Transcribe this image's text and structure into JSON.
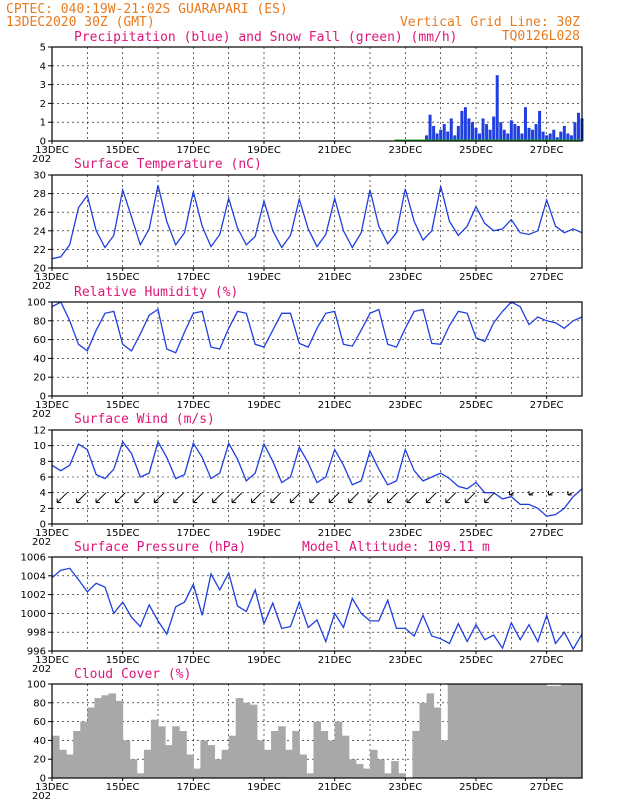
{
  "header": {
    "line1": "CPTEC:  040:19W-21:02S  GUARAPARI (ES)",
    "line2": "13DEC2020 30Z (GMT)",
    "grid_note": "Vertical Grid Line: 30Z",
    "code": "TQ0126L028"
  },
  "x_axis": {
    "start_label": "13DEC",
    "day_labels": [
      "13DEC",
      "15DEC",
      "17DEC",
      "19DEC",
      "21DEC",
      "23DEC",
      "25DEC",
      "27DEC"
    ],
    "year_stub": "202",
    "days_span": 15
  },
  "colors": {
    "line": "#1f3fe0",
    "snow": "#19b020",
    "cloud": "#a8a8a8",
    "title": "#e0157a",
    "header": "#e87b1e"
  },
  "chart_data": [
    {
      "type": "bar",
      "title": "Precipitation (blue) and Snow Fall (green) (mm/h)",
      "ylim": [
        0,
        5
      ],
      "yticks": [
        0,
        1,
        2,
        3,
        4,
        5
      ],
      "series": [
        {
          "name": "Precipitation",
          "color": "#1f3fe0",
          "x": [
            10.6,
            10.7,
            10.8,
            10.9,
            11.0,
            11.1,
            11.2,
            11.3,
            11.4,
            11.5,
            11.6,
            11.7,
            11.8,
            11.9,
            12.0,
            12.1,
            12.2,
            12.3,
            12.4,
            12.5,
            12.6,
            12.7,
            12.8,
            12.9,
            13.0,
            13.1,
            13.2,
            13.3,
            13.4,
            13.5,
            13.6,
            13.7,
            13.8,
            13.9,
            14.0,
            14.1,
            14.2,
            14.3,
            14.4,
            14.5,
            14.6,
            14.7,
            14.8,
            14.9,
            15.0
          ],
          "values": [
            0.3,
            1.4,
            0.8,
            0.4,
            0.6,
            0.9,
            0.5,
            1.2,
            0.3,
            0.8,
            1.6,
            1.8,
            1.2,
            1.0,
            0.7,
            0.4,
            1.2,
            0.9,
            0.6,
            1.3,
            3.5,
            1.0,
            0.6,
            0.4,
            1.1,
            0.9,
            0.8,
            0.4,
            1.8,
            0.7,
            0.6,
            0.9,
            1.6,
            0.5,
            0.3,
            0.4,
            0.6,
            0.2,
            0.5,
            0.8,
            0.4,
            0.3,
            1.0,
            1.5,
            1.2
          ]
        },
        {
          "name": "Snow Fall",
          "color": "#19b020",
          "x": [],
          "values": []
        }
      ]
    },
    {
      "type": "line",
      "title": "Surface Temperature (nC)",
      "ylim": [
        20,
        30
      ],
      "yticks": [
        20,
        22,
        24,
        26,
        28,
        30
      ],
      "x": [
        0.0,
        0.25,
        0.5,
        0.75,
        1.0,
        1.25,
        1.5,
        1.75,
        2.0,
        2.25,
        2.5,
        2.75,
        3.0,
        3.25,
        3.5,
        3.75,
        4.0,
        4.25,
        4.5,
        4.75,
        5.0,
        5.25,
        5.5,
        5.75,
        6.0,
        6.25,
        6.5,
        6.75,
        7.0,
        7.25,
        7.5,
        7.75,
        8.0,
        8.25,
        8.5,
        8.75,
        9.0,
        9.25,
        9.5,
        9.75,
        10.0,
        10.25,
        10.5,
        10.75,
        11.0,
        11.25,
        11.5,
        11.75,
        12.0,
        12.25,
        12.5,
        12.75,
        13.0,
        13.25,
        13.5,
        13.75,
        14.0,
        14.25,
        14.5,
        14.75,
        15.0
      ],
      "values": [
        21.0,
        21.2,
        22.5,
        26.5,
        27.8,
        24.0,
        22.2,
        23.5,
        28.4,
        25.5,
        22.5,
        24.2,
        28.9,
        25.0,
        22.5,
        23.8,
        28.2,
        24.5,
        22.3,
        23.6,
        27.5,
        24.3,
        22.5,
        23.4,
        27.2,
        24.0,
        22.2,
        23.5,
        27.4,
        24.2,
        22.3,
        23.6,
        27.5,
        24.0,
        22.2,
        23.8,
        28.4,
        24.5,
        22.6,
        23.8,
        28.5,
        25.0,
        23.0,
        24.0,
        28.8,
        25.0,
        23.5,
        24.5,
        26.6,
        24.8,
        24.0,
        24.2,
        25.2,
        23.8,
        23.6,
        24.0,
        27.3,
        24.5,
        23.8,
        24.2,
        23.8
      ]
    },
    {
      "type": "line",
      "title": "Relative Humidity (%)",
      "ylim": [
        0,
        100
      ],
      "yticks": [
        0,
        20,
        40,
        60,
        80,
        100
      ],
      "x": [
        0.0,
        0.25,
        0.5,
        0.75,
        1.0,
        1.25,
        1.5,
        1.75,
        2.0,
        2.25,
        2.5,
        2.75,
        3.0,
        3.25,
        3.5,
        3.75,
        4.0,
        4.25,
        4.5,
        4.75,
        5.0,
        5.25,
        5.5,
        5.75,
        6.0,
        6.25,
        6.5,
        6.75,
        7.0,
        7.25,
        7.5,
        7.75,
        8.0,
        8.25,
        8.5,
        8.75,
        9.0,
        9.25,
        9.5,
        9.75,
        10.0,
        10.25,
        10.5,
        10.75,
        11.0,
        11.25,
        11.5,
        11.75,
        12.0,
        12.25,
        12.5,
        12.75,
        13.0,
        13.25,
        13.5,
        13.75,
        14.0,
        14.25,
        14.5,
        14.75,
        15.0
      ],
      "values": [
        95,
        100,
        80,
        55,
        48,
        70,
        88,
        90,
        55,
        48,
        66,
        86,
        92,
        50,
        46,
        68,
        88,
        90,
        52,
        50,
        72,
        90,
        88,
        55,
        52,
        70,
        88,
        88,
        56,
        52,
        72,
        88,
        90,
        55,
        53,
        70,
        88,
        92,
        55,
        52,
        72,
        90,
        92,
        56,
        55,
        75,
        90,
        88,
        62,
        58,
        78,
        90,
        100,
        95,
        76,
        84,
        80,
        78,
        72,
        80,
        84
      ]
    },
    {
      "type": "line",
      "title": "Surface Wind (m/s)",
      "ylim": [
        0,
        12
      ],
      "yticks": [
        0,
        2,
        4,
        6,
        8,
        10,
        12
      ],
      "x": [
        0.0,
        0.25,
        0.5,
        0.75,
        1.0,
        1.25,
        1.5,
        1.75,
        2.0,
        2.25,
        2.5,
        2.75,
        3.0,
        3.25,
        3.5,
        3.75,
        4.0,
        4.25,
        4.5,
        4.75,
        5.0,
        5.25,
        5.5,
        5.75,
        6.0,
        6.25,
        6.5,
        6.75,
        7.0,
        7.25,
        7.5,
        7.75,
        8.0,
        8.25,
        8.5,
        8.75,
        9.0,
        9.25,
        9.5,
        9.75,
        10.0,
        10.25,
        10.5,
        10.75,
        11.0,
        11.25,
        11.5,
        11.75,
        12.0,
        12.25,
        12.5,
        12.75,
        13.0,
        13.25,
        13.5,
        13.75,
        14.0,
        14.25,
        14.5,
        14.75,
        15.0
      ],
      "values": [
        7.5,
        6.8,
        7.5,
        10.2,
        9.5,
        6.3,
        5.8,
        7.0,
        10.5,
        9.0,
        6.0,
        6.5,
        10.5,
        8.5,
        5.8,
        6.3,
        10.3,
        8.5,
        5.8,
        6.5,
        10.3,
        8.3,
        5.5,
        6.5,
        10.2,
        8.0,
        5.3,
        6.0,
        9.8,
        7.8,
        5.3,
        6.0,
        9.5,
        7.5,
        5.0,
        5.5,
        9.3,
        7.0,
        5.0,
        5.5,
        9.5,
        6.8,
        5.5,
        6.0,
        6.5,
        5.8,
        4.8,
        4.5,
        5.3,
        4.0,
        4.0,
        3.2,
        3.5,
        2.5,
        2.5,
        2.0,
        1.0,
        1.2,
        2.0,
        3.5,
        4.5
      ]
    },
    {
      "type": "line",
      "title": "Surface Pressure (hPa)",
      "annotation": "Model Altitude: 109.11 m",
      "ylim": [
        996,
        1006
      ],
      "yticks": [
        996,
        998,
        1000,
        1002,
        1004,
        1006
      ],
      "x": [
        0.0,
        0.25,
        0.5,
        0.75,
        1.0,
        1.25,
        1.5,
        1.75,
        2.0,
        2.25,
        2.5,
        2.75,
        3.0,
        3.25,
        3.5,
        3.75,
        4.0,
        4.25,
        4.5,
        4.75,
        5.0,
        5.25,
        5.5,
        5.75,
        6.0,
        6.25,
        6.5,
        6.75,
        7.0,
        7.25,
        7.5,
        7.75,
        8.0,
        8.25,
        8.5,
        8.75,
        9.0,
        9.25,
        9.5,
        9.75,
        10.0,
        10.25,
        10.5,
        10.75,
        11.0,
        11.25,
        11.5,
        11.75,
        12.0,
        12.25,
        12.5,
        12.75,
        13.0,
        13.25,
        13.5,
        13.75,
        14.0,
        14.25,
        14.5,
        14.75,
        15.0
      ],
      "values": [
        1003.8,
        1004.6,
        1004.8,
        1003.6,
        1002.3,
        1003.2,
        1002.8,
        1000.0,
        1001.2,
        999.6,
        998.6,
        1000.9,
        999.2,
        997.8,
        1000.7,
        1001.2,
        1003.1,
        999.8,
        1004.2,
        1002.5,
        1004.3,
        1000.8,
        1000.2,
        1002.5,
        998.9,
        1001.1,
        998.4,
        998.6,
        1001.2,
        998.5,
        999.3,
        997.0,
        1000.0,
        998.5,
        1001.6,
        1000.0,
        999.2,
        999.2,
        1001.4,
        998.4,
        998.4,
        997.6,
        999.8,
        997.6,
        997.3,
        996.8,
        998.9,
        997.0,
        998.8,
        997.2,
        997.7,
        996.3,
        999.0,
        997.2,
        998.8,
        997.0,
        999.8,
        996.8,
        998.0,
        996.2,
        997.8
      ]
    },
    {
      "type": "bar",
      "title": "Cloud Cover (%)",
      "ylim": [
        0,
        100
      ],
      "yticks": [
        0,
        20,
        40,
        60,
        80,
        100
      ],
      "color": "#a8a8a8",
      "x": [
        0.0,
        0.2,
        0.4,
        0.6,
        0.8,
        1.0,
        1.2,
        1.4,
        1.6,
        1.8,
        2.0,
        2.2,
        2.4,
        2.6,
        2.8,
        3.0,
        3.2,
        3.4,
        3.6,
        3.8,
        4.0,
        4.2,
        4.4,
        4.6,
        4.8,
        5.0,
        5.2,
        5.4,
        5.6,
        5.8,
        6.0,
        6.2,
        6.4,
        6.6,
        6.8,
        7.0,
        7.2,
        7.4,
        7.6,
        7.8,
        8.0,
        8.2,
        8.4,
        8.6,
        8.8,
        9.0,
        9.2,
        9.4,
        9.6,
        9.8,
        10.0,
        10.2,
        10.4,
        10.6,
        10.8,
        11.0,
        11.2,
        11.4,
        11.6,
        11.8,
        12.0,
        12.2,
        12.4,
        12.6,
        12.8,
        13.0,
        13.2,
        13.4,
        13.6,
        13.8,
        14.0,
        14.2,
        14.4,
        14.6,
        14.8
      ],
      "values": [
        45,
        30,
        25,
        50,
        60,
        75,
        85,
        88,
        90,
        82,
        40,
        20,
        5,
        30,
        62,
        55,
        35,
        55,
        50,
        25,
        10,
        40,
        35,
        20,
        30,
        45,
        85,
        80,
        78,
        40,
        30,
        50,
        55,
        30,
        50,
        25,
        5,
        60,
        50,
        40,
        60,
        45,
        20,
        15,
        10,
        30,
        20,
        5,
        18,
        5,
        0,
        50,
        80,
        90,
        75,
        40,
        100,
        100,
        100,
        100,
        100,
        100,
        100,
        100,
        100,
        100,
        100,
        100,
        100,
        100,
        98,
        98,
        100,
        100,
        100
      ]
    }
  ]
}
